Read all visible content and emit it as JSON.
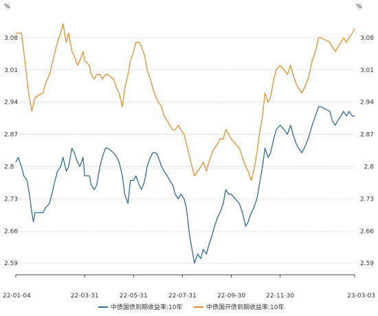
{
  "chart_data": {
    "type": "line",
    "unit_left": "%",
    "unit_right": "%",
    "y_left": {
      "ticks": [
        "3.08",
        "3.01",
        "2.94",
        "2.87",
        "2.8",
        "2.73",
        "2.66",
        "2.59"
      ],
      "min": 2.565,
      "max": 3.135
    },
    "y_right": {
      "ticks": [
        "3.08",
        "3.01",
        "2.94",
        "2.87",
        "2.8",
        "2.73",
        "2.66",
        "2.59"
      ],
      "min": 2.565,
      "max": 3.135
    },
    "x_ticks": [
      "22-01-04",
      "22-03-31",
      "22-05-31",
      "22-07-31",
      "22-09-30",
      "22-11-30",
      "23-03-03"
    ],
    "x_tick_dates": [
      "2022-01-04",
      "2022-03-31",
      "2022-05-31",
      "2022-07-31",
      "2022-09-30",
      "2022-11-30",
      "2023-03-03"
    ],
    "x_range": [
      "2022-01-04",
      "2023-03-03"
    ],
    "grid": true,
    "legend_position": "bottom",
    "series": [
      {
        "name": "中债国债到期收益率:10年",
        "color": "#2e6a96",
        "axis": "left",
        "points": [
          [
            "2022-01-04",
            2.81
          ],
          [
            "2022-01-07",
            2.82
          ],
          [
            "2022-01-11",
            2.8
          ],
          [
            "2022-01-14",
            2.78
          ],
          [
            "2022-01-18",
            2.77
          ],
          [
            "2022-01-21",
            2.74
          ],
          [
            "2022-01-24",
            2.7
          ],
          [
            "2022-01-26",
            2.68
          ],
          [
            "2022-01-28",
            2.7
          ],
          [
            "2022-02-07",
            2.7
          ],
          [
            "2022-02-10",
            2.71
          ],
          [
            "2022-02-15",
            2.72
          ],
          [
            "2022-02-18",
            2.74
          ],
          [
            "2022-02-22",
            2.77
          ],
          [
            "2022-02-25",
            2.79
          ],
          [
            "2022-03-01",
            2.8
          ],
          [
            "2022-03-04",
            2.82
          ],
          [
            "2022-03-08",
            2.79
          ],
          [
            "2022-03-11",
            2.8
          ],
          [
            "2022-03-15",
            2.84
          ],
          [
            "2022-03-18",
            2.83
          ],
          [
            "2022-03-22",
            2.81
          ],
          [
            "2022-03-25",
            2.8
          ],
          [
            "2022-03-29",
            2.82
          ],
          [
            "2022-03-31",
            2.78
          ],
          [
            "2022-04-06",
            2.78
          ],
          [
            "2022-04-08",
            2.76
          ],
          [
            "2022-04-12",
            2.75
          ],
          [
            "2022-04-15",
            2.76
          ],
          [
            "2022-04-19",
            2.8
          ],
          [
            "2022-04-22",
            2.82
          ],
          [
            "2022-04-26",
            2.84
          ],
          [
            "2022-04-29",
            2.84
          ],
          [
            "2022-05-06",
            2.83
          ],
          [
            "2022-05-10",
            2.82
          ],
          [
            "2022-05-13",
            2.81
          ],
          [
            "2022-05-17",
            2.78
          ],
          [
            "2022-05-20",
            2.74
          ],
          [
            "2022-05-24",
            2.72
          ],
          [
            "2022-05-27",
            2.77
          ],
          [
            "2022-05-31",
            2.77
          ],
          [
            "2022-06-03",
            2.78
          ],
          [
            "2022-06-07",
            2.76
          ],
          [
            "2022-06-10",
            2.75
          ],
          [
            "2022-06-14",
            2.77
          ],
          [
            "2022-06-17",
            2.8
          ],
          [
            "2022-06-21",
            2.82
          ],
          [
            "2022-06-24",
            2.83
          ],
          [
            "2022-06-28",
            2.83
          ],
          [
            "2022-07-01",
            2.82
          ],
          [
            "2022-07-05",
            2.8
          ],
          [
            "2022-07-08",
            2.79
          ],
          [
            "2022-07-12",
            2.78
          ],
          [
            "2022-07-15",
            2.77
          ],
          [
            "2022-07-19",
            2.76
          ],
          [
            "2022-07-22",
            2.74
          ],
          [
            "2022-07-26",
            2.73
          ],
          [
            "2022-07-29",
            2.74
          ],
          [
            "2022-08-02",
            2.73
          ],
          [
            "2022-08-05",
            2.71
          ],
          [
            "2022-08-09",
            2.65
          ],
          [
            "2022-08-12",
            2.62
          ],
          [
            "2022-08-15",
            2.59
          ],
          [
            "2022-08-19",
            2.61
          ],
          [
            "2022-08-23",
            2.6
          ],
          [
            "2022-08-26",
            2.62
          ],
          [
            "2022-08-30",
            2.61
          ],
          [
            "2022-09-02",
            2.63
          ],
          [
            "2022-09-06",
            2.65
          ],
          [
            "2022-09-09",
            2.67
          ],
          [
            "2022-09-13",
            2.69
          ],
          [
            "2022-09-16",
            2.7
          ],
          [
            "2022-09-20",
            2.72
          ],
          [
            "2022-09-23",
            2.75
          ],
          [
            "2022-09-27",
            2.74
          ],
          [
            "2022-09-30",
            2.74
          ],
          [
            "2022-10-10",
            2.72
          ],
          [
            "2022-10-14",
            2.7
          ],
          [
            "2022-10-18",
            2.67
          ],
          [
            "2022-10-21",
            2.68
          ],
          [
            "2022-10-25",
            2.7
          ],
          [
            "2022-10-28",
            2.71
          ],
          [
            "2022-11-01",
            2.73
          ],
          [
            "2022-11-04",
            2.76
          ],
          [
            "2022-11-08",
            2.8
          ],
          [
            "2022-11-11",
            2.84
          ],
          [
            "2022-11-15",
            2.82
          ],
          [
            "2022-11-18",
            2.83
          ],
          [
            "2022-11-22",
            2.86
          ],
          [
            "2022-11-25",
            2.88
          ],
          [
            "2022-11-30",
            2.89
          ],
          [
            "2022-12-05",
            2.88
          ],
          [
            "2022-12-09",
            2.87
          ],
          [
            "2022-12-13",
            2.89
          ],
          [
            "2022-12-16",
            2.87
          ],
          [
            "2022-12-20",
            2.85
          ],
          [
            "2022-12-23",
            2.84
          ],
          [
            "2022-12-27",
            2.83
          ],
          [
            "2022-12-30",
            2.84
          ],
          [
            "2023-01-04",
            2.86
          ],
          [
            "2023-01-09",
            2.89
          ],
          [
            "2023-01-13",
            2.91
          ],
          [
            "2023-01-17",
            2.93
          ],
          [
            "2023-01-20",
            2.93
          ],
          [
            "2023-01-31",
            2.92
          ],
          [
            "2023-02-03",
            2.9
          ],
          [
            "2023-02-07",
            2.89
          ],
          [
            "2023-02-10",
            2.9
          ],
          [
            "2023-02-14",
            2.91
          ],
          [
            "2023-02-17",
            2.92
          ],
          [
            "2023-02-21",
            2.91
          ],
          [
            "2023-02-24",
            2.92
          ],
          [
            "2023-02-28",
            2.91
          ],
          [
            "2023-03-03",
            2.91
          ]
        ]
      },
      {
        "name": "中债国开债到期收益率:10年",
        "color": "#e98b2a",
        "axis": "right",
        "points": [
          [
            "2022-01-04",
            3.09
          ],
          [
            "2022-01-07",
            3.09
          ],
          [
            "2022-01-11",
            3.09
          ],
          [
            "2022-01-14",
            3.05
          ],
          [
            "2022-01-18",
            2.99
          ],
          [
            "2022-01-20",
            2.96
          ],
          [
            "2022-01-24",
            2.92
          ],
          [
            "2022-01-28",
            2.95
          ],
          [
            "2022-02-07",
            2.96
          ],
          [
            "2022-02-10",
            2.98
          ],
          [
            "2022-02-15",
            3.0
          ],
          [
            "2022-02-18",
            3.02
          ],
          [
            "2022-02-22",
            3.05
          ],
          [
            "2022-02-25",
            3.07
          ],
          [
            "2022-03-01",
            3.09
          ],
          [
            "2022-03-04",
            3.11
          ],
          [
            "2022-03-08",
            3.07
          ],
          [
            "2022-03-11",
            3.09
          ],
          [
            "2022-03-15",
            3.05
          ],
          [
            "2022-03-18",
            3.04
          ],
          [
            "2022-03-22",
            3.02
          ],
          [
            "2022-03-25",
            3.03
          ],
          [
            "2022-03-29",
            3.05
          ],
          [
            "2022-03-31",
            3.03
          ],
          [
            "2022-04-06",
            3.02
          ],
          [
            "2022-04-08",
            3.0
          ],
          [
            "2022-04-12",
            2.99
          ],
          [
            "2022-04-15",
            3.0
          ],
          [
            "2022-04-19",
            3.0
          ],
          [
            "2022-04-22",
            2.99
          ],
          [
            "2022-04-26",
            3.0
          ],
          [
            "2022-04-29",
            3.0
          ],
          [
            "2022-05-06",
            2.99
          ],
          [
            "2022-05-10",
            2.97
          ],
          [
            "2022-05-13",
            2.96
          ],
          [
            "2022-05-17",
            2.93
          ],
          [
            "2022-05-20",
            2.97
          ],
          [
            "2022-05-24",
            3.0
          ],
          [
            "2022-05-27",
            3.03
          ],
          [
            "2022-05-31",
            3.05
          ],
          [
            "2022-06-03",
            3.07
          ],
          [
            "2022-06-07",
            3.07
          ],
          [
            "2022-06-10",
            3.06
          ],
          [
            "2022-06-14",
            3.04
          ],
          [
            "2022-06-17",
            3.01
          ],
          [
            "2022-06-21",
            2.99
          ],
          [
            "2022-06-24",
            2.97
          ],
          [
            "2022-06-28",
            2.95
          ],
          [
            "2022-07-01",
            2.94
          ],
          [
            "2022-07-05",
            2.93
          ],
          [
            "2022-07-08",
            2.91
          ],
          [
            "2022-07-12",
            2.9
          ],
          [
            "2022-07-15",
            2.89
          ],
          [
            "2022-07-19",
            2.88
          ],
          [
            "2022-07-22",
            2.88
          ],
          [
            "2022-07-26",
            2.89
          ],
          [
            "2022-07-29",
            2.88
          ],
          [
            "2022-08-02",
            2.87
          ],
          [
            "2022-08-05",
            2.85
          ],
          [
            "2022-08-09",
            2.82
          ],
          [
            "2022-08-12",
            2.8
          ],
          [
            "2022-08-15",
            2.78
          ],
          [
            "2022-08-19",
            2.79
          ],
          [
            "2022-08-23",
            2.8
          ],
          [
            "2022-08-26",
            2.81
          ],
          [
            "2022-08-30",
            2.79
          ],
          [
            "2022-09-02",
            2.81
          ],
          [
            "2022-09-06",
            2.83
          ],
          [
            "2022-09-09",
            2.84
          ],
          [
            "2022-09-13",
            2.85
          ],
          [
            "2022-09-16",
            2.86
          ],
          [
            "2022-09-20",
            2.86
          ],
          [
            "2022-09-23",
            2.88
          ],
          [
            "2022-09-27",
            2.87
          ],
          [
            "2022-09-30",
            2.86
          ],
          [
            "2022-10-10",
            2.84
          ],
          [
            "2022-10-14",
            2.82
          ],
          [
            "2022-10-18",
            2.8
          ],
          [
            "2022-10-21",
            2.79
          ],
          [
            "2022-10-25",
            2.77
          ],
          [
            "2022-10-28",
            2.79
          ],
          [
            "2022-11-01",
            2.83
          ],
          [
            "2022-11-04",
            2.87
          ],
          [
            "2022-11-08",
            2.91
          ],
          [
            "2022-11-11",
            2.96
          ],
          [
            "2022-11-15",
            2.94
          ],
          [
            "2022-11-18",
            2.95
          ],
          [
            "2022-11-22",
            2.99
          ],
          [
            "2022-11-25",
            3.01
          ],
          [
            "2022-11-30",
            3.02
          ],
          [
            "2022-12-05",
            3.01
          ],
          [
            "2022-12-09",
            3.0
          ],
          [
            "2022-12-13",
            3.02
          ],
          [
            "2022-12-16",
            3.0
          ],
          [
            "2022-12-20",
            2.98
          ],
          [
            "2022-12-23",
            2.97
          ],
          [
            "2022-12-27",
            2.96
          ],
          [
            "2022-12-30",
            2.97
          ],
          [
            "2023-01-04",
            2.99
          ],
          [
            "2023-01-09",
            3.03
          ],
          [
            "2023-01-13",
            3.05
          ],
          [
            "2023-01-17",
            3.08
          ],
          [
            "2023-01-20",
            3.08
          ],
          [
            "2023-01-31",
            3.07
          ],
          [
            "2023-02-03",
            3.06
          ],
          [
            "2023-02-07",
            3.05
          ],
          [
            "2023-02-10",
            3.06
          ],
          [
            "2023-02-14",
            3.07
          ],
          [
            "2023-02-17",
            3.08
          ],
          [
            "2023-02-21",
            3.07
          ],
          [
            "2023-02-24",
            3.08
          ],
          [
            "2023-02-28",
            3.09
          ],
          [
            "2023-03-03",
            3.1
          ]
        ]
      }
    ]
  }
}
